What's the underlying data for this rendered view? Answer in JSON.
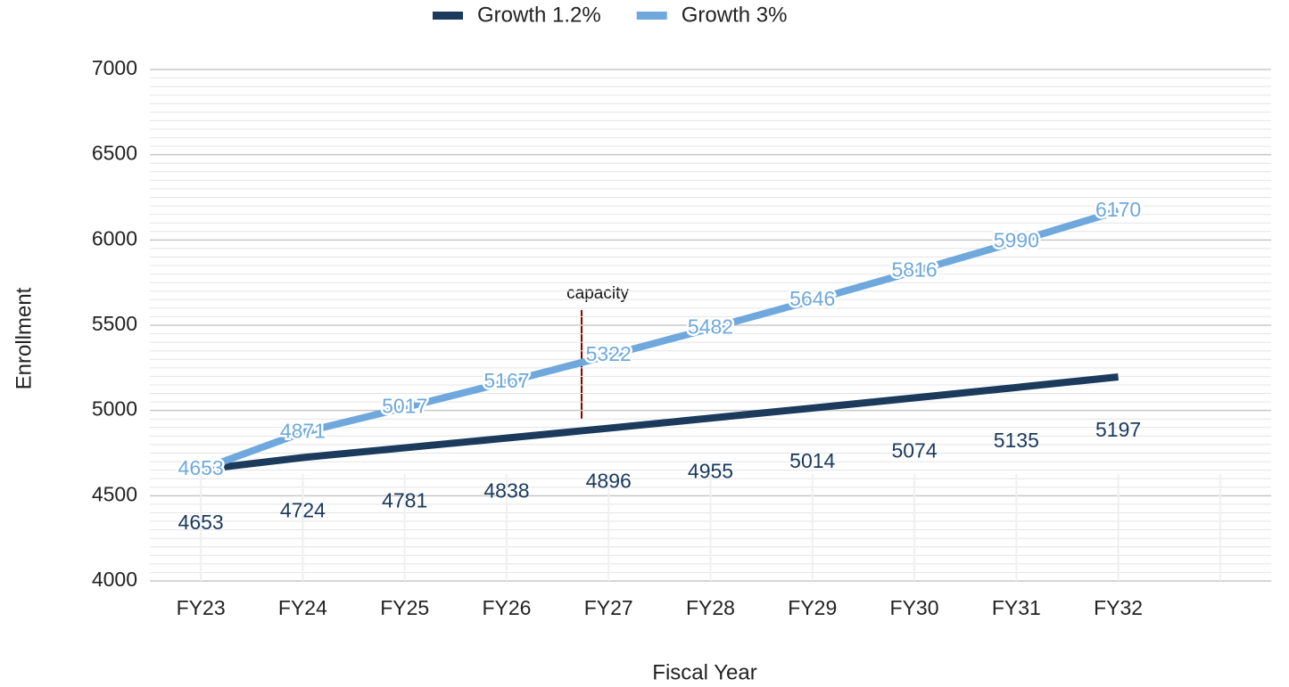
{
  "chart_data": {
    "type": "line",
    "categories": [
      "FY23",
      "FY24",
      "FY25",
      "FY26",
      "FY27",
      "FY28",
      "FY29",
      "FY30",
      "FY31",
      "FY32",
      null
    ],
    "series": [
      {
        "name": "Growth 1.2%",
        "color": "#1b3a5c",
        "values": [
          4653,
          4724,
          4781,
          4838,
          4896,
          4955,
          5014,
          5074,
          5135,
          5197,
          null
        ]
      },
      {
        "name": "Growth 3%",
        "color": "#6fa8dc",
        "values": [
          4653,
          4871,
          5017,
          5167,
          5322,
          5482,
          5646,
          5816,
          5990,
          6170,
          null
        ]
      }
    ],
    "ylim": [
      4000,
      7000
    ],
    "yticks": [
      4000,
      4500,
      5000,
      5500,
      6000,
      6500,
      7000
    ],
    "xlabel": "Fiscal Year",
    "ylabel": "Enrollment",
    "annotation": "capacity",
    "grid": true,
    "legend": "top"
  }
}
